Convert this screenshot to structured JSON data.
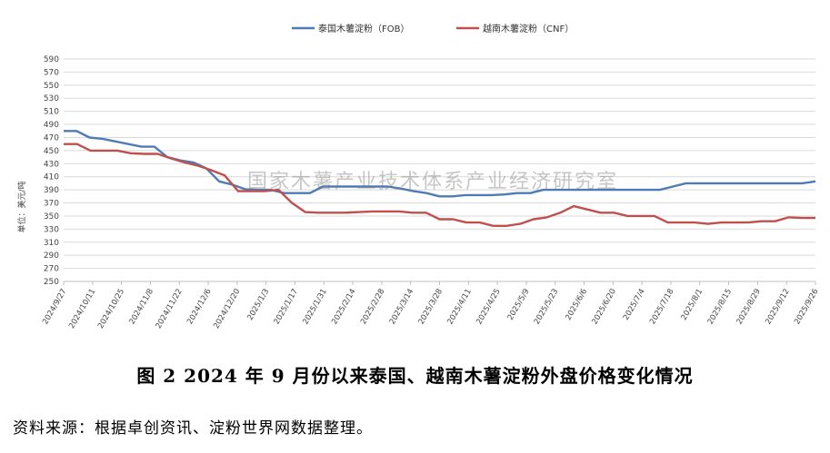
{
  "chart_data": {
    "type": "line",
    "ylabel": "单位：美元/吨",
    "ylim": [
      250,
      590
    ],
    "ystep": 20,
    "grid": true,
    "legend_position": "top-center",
    "tick_labels": [
      "2024/9/27",
      "2024/10/11",
      "2024/10/25",
      "2024/11/8",
      "2024/11/22",
      "2024/12/6",
      "2024/12/20",
      "2025/1/3",
      "2025/1/17",
      "2025/1/31",
      "2025/2/14",
      "2025/2/28",
      "2025/3/14",
      "2025/3/28",
      "2025/4/11",
      "2025/4/25",
      "2025/5/9",
      "2025/5/23",
      "2025/6/6",
      "2025/6/20",
      "2025/7/4",
      "2025/7/18",
      "2025/8/1",
      "2025/8/15",
      "2025/8/29",
      "2025/9/12",
      "2025/9/26"
    ],
    "series": [
      {
        "name": "泰国木薯淀粉（FOB）",
        "color": "#4f7bb5",
        "values": [
          480,
          480,
          470,
          468,
          464,
          460,
          456,
          456,
          440,
          435,
          432,
          423,
          403,
          398,
          391,
          390,
          390,
          385,
          385,
          385,
          395,
          395,
          395,
          395,
          395,
          395,
          392,
          388,
          385,
          380,
          380,
          382,
          382,
          382,
          383,
          385,
          385,
          390,
          390,
          390,
          390,
          390,
          390,
          390,
          390,
          390,
          390,
          395,
          400,
          400,
          400,
          400,
          400,
          400,
          400,
          400,
          400,
          400,
          403
        ]
      },
      {
        "name": "越南木薯淀粉（CNF）",
        "color": "#c0504d",
        "values": [
          460,
          460,
          450,
          450,
          450,
          446,
          445,
          445,
          438,
          432,
          427,
          420,
          412,
          388,
          388,
          388,
          390,
          370,
          356,
          355,
          355,
          355,
          356,
          357,
          357,
          357,
          355,
          355,
          345,
          345,
          340,
          340,
          335,
          335,
          338,
          345,
          348,
          355,
          365,
          360,
          355,
          355,
          350,
          350,
          350,
          340,
          340,
          340,
          338,
          340,
          340,
          340,
          342,
          342,
          348,
          347,
          347
        ]
      }
    ]
  },
  "watermark": "国家木薯产业技术体系产业经济研究室",
  "caption": "图 2    2024 年 9 月份以来泰国、越南木薯淀粉外盘价格变化情况",
  "source": "资料来源：根据卓创资讯、淀粉世界网数据整理。"
}
